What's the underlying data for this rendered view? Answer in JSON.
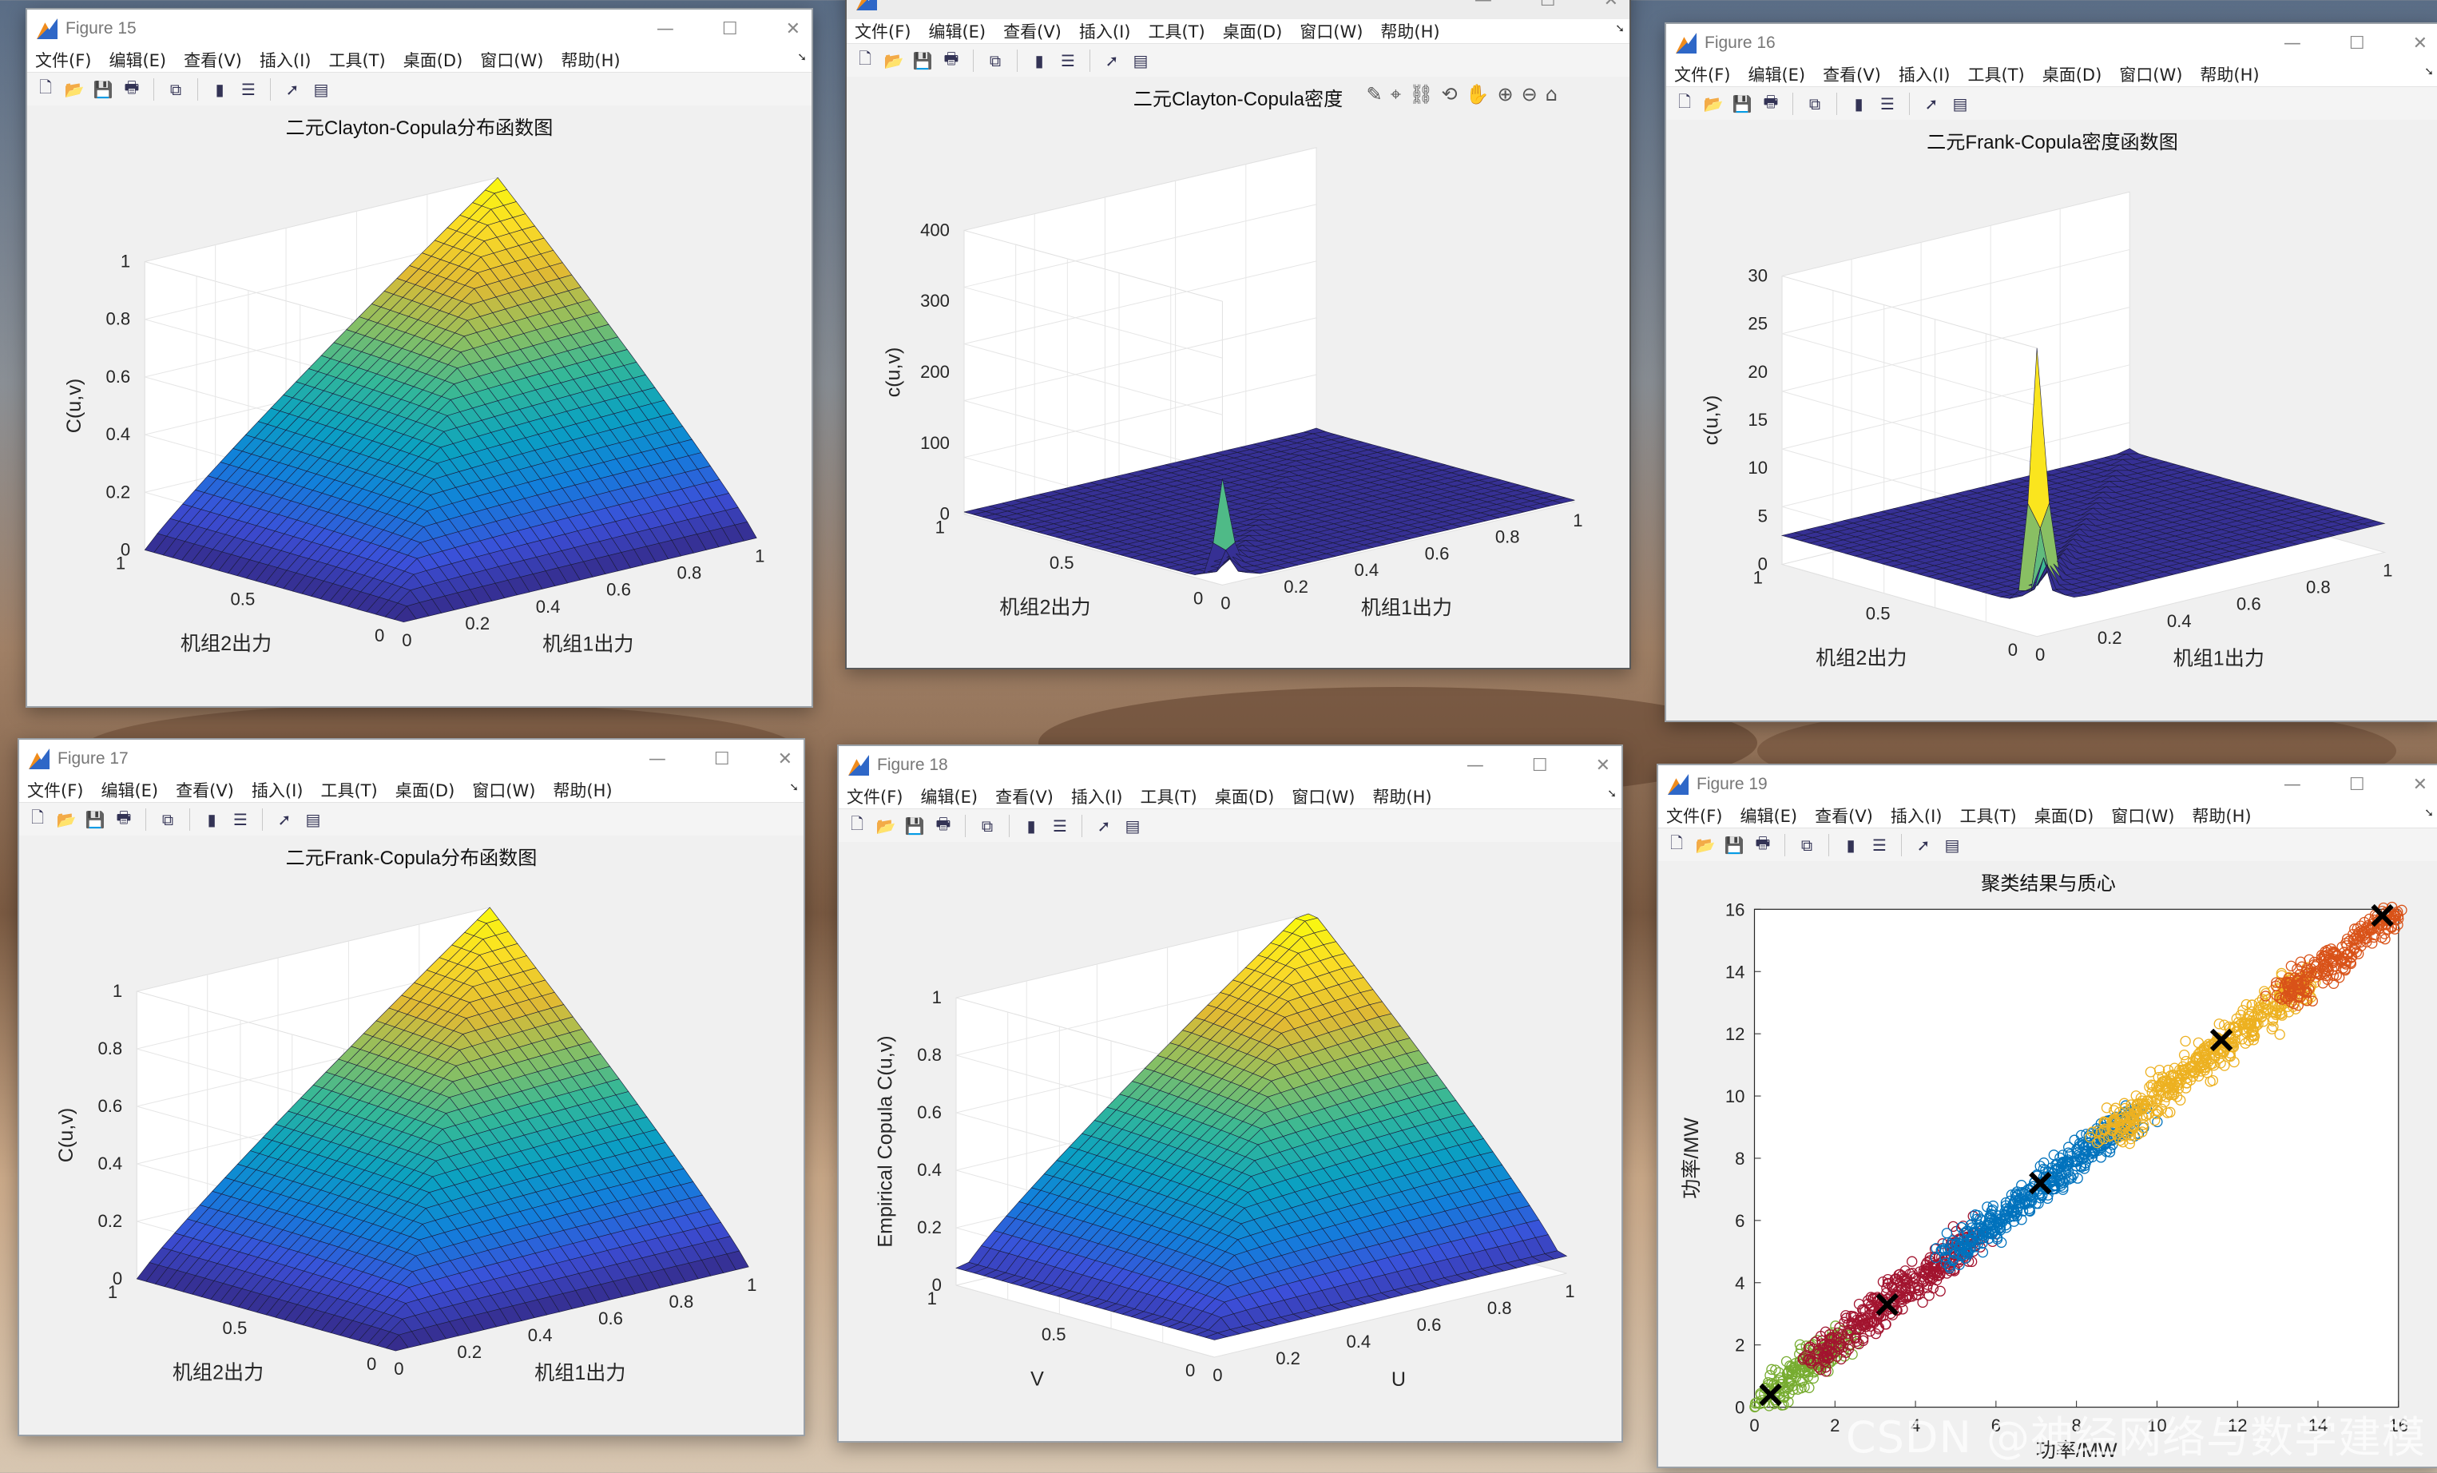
{
  "menus": [
    "文件(F)",
    "编辑(E)",
    "查看(V)",
    "插入(I)",
    "工具(T)",
    "桌面(D)",
    "窗口(W)",
    "帮助(H)"
  ],
  "toolbar_icons": [
    "new-figure-icon",
    "open-file-icon",
    "save-icon",
    "print-icon",
    "link-icon",
    "colorbar-icon",
    "legend-icon",
    "pointer-icon",
    "property-inspector-icon"
  ],
  "axes_toolbar_icons": [
    "brush-icon",
    "data-tip-icon",
    "link-axes-icon",
    "rotate-3d-icon",
    "pan-icon",
    "zoom-in-icon",
    "zoom-out-icon",
    "home-icon"
  ],
  "window_controls": {
    "minimize": "—",
    "maximize": "☐",
    "close": "✕"
  },
  "windows": [
    {
      "id": "f15",
      "title": "Figure 15",
      "active": false,
      "plot": {
        "type": "surface",
        "surface": "cdf",
        "title": "二元Clayton-Copula分布函数图",
        "zlabel": "C(u,v)",
        "xlabel": "机组1出力",
        "ylabel": "机组2出力",
        "zticks": [
          "0",
          "0.2",
          "0.4",
          "0.6",
          "0.8",
          "1"
        ],
        "xticks": [
          "0",
          "0.2",
          "0.4",
          "0.6",
          "0.8",
          "1"
        ],
        "yticks": [
          "0",
          "0.5",
          "1"
        ]
      }
    },
    {
      "id": "fclay",
      "title": "",
      "active": true,
      "plot": {
        "type": "surface",
        "surface": "density",
        "title": "二元Clayton-Copula密度",
        "zlabel": "c(u,v)",
        "xlabel": "机组1出力",
        "ylabel": "机组2出力",
        "zticks": [
          "0",
          "100",
          "200",
          "300",
          "400"
        ],
        "xticks": [
          "0",
          "0.2",
          "0.4",
          "0.6",
          "0.8",
          "1"
        ],
        "yticks": [
          "0",
          "0.5",
          "1"
        ]
      }
    },
    {
      "id": "f16",
      "title": "Figure 16",
      "active": false,
      "plot": {
        "type": "surface",
        "surface": "density",
        "title": "二元Frank-Copula密度函数图",
        "zlabel": "c(u,v)",
        "xlabel": "机组1出力",
        "ylabel": "机组2出力",
        "zticks": [
          "0",
          "5",
          "10",
          "15",
          "20",
          "25",
          "30"
        ],
        "xticks": [
          "0",
          "0.2",
          "0.4",
          "0.6",
          "0.8",
          "1"
        ],
        "yticks": [
          "0",
          "0.5",
          "1"
        ]
      }
    },
    {
      "id": "f17",
      "title": "Figure 17",
      "active": false,
      "plot": {
        "type": "surface",
        "surface": "cdf",
        "title": "二元Frank-Copula分布函数图",
        "zlabel": "C(u,v)",
        "xlabel": "机组1出力",
        "ylabel": "机组2出力",
        "zticks": [
          "0",
          "0.2",
          "0.4",
          "0.6",
          "0.8",
          "1"
        ],
        "xticks": [
          "0",
          "0.2",
          "0.4",
          "0.6",
          "0.8",
          "1"
        ],
        "yticks": [
          "0",
          "0.5",
          "1"
        ]
      }
    },
    {
      "id": "f18",
      "title": "Figure 18",
      "active": false,
      "plot": {
        "type": "surface",
        "surface": "empirical",
        "title": "",
        "zlabel": "Empirical Copula C(u,v)",
        "xlabel": "U",
        "ylabel": "V",
        "zticks": [
          "0",
          "0.2",
          "0.4",
          "0.6",
          "0.8",
          "1"
        ],
        "xticks": [
          "0",
          "0.2",
          "0.4",
          "0.6",
          "0.8",
          "1"
        ],
        "yticks": [
          "0",
          "0.5",
          "1"
        ]
      }
    },
    {
      "id": "f19",
      "title": "Figure 19",
      "active": false,
      "plot": {
        "type": "scatter",
        "title": "聚类结果与质心",
        "xlabel": "功率/MW",
        "ylabel": "功率/MW",
        "xticks": [
          "0",
          "2",
          "4",
          "6",
          "8",
          "10",
          "12",
          "14",
          "16"
        ],
        "yticks": [
          "0",
          "2",
          "4",
          "6",
          "8",
          "10",
          "12",
          "14",
          "16"
        ]
      }
    }
  ],
  "chart_data": [
    {
      "type": "surface",
      "title": "二元Clayton-Copula分布函数图",
      "zlabel": "C(u,v)",
      "xlabel": "机组1出力",
      "ylabel": "机组2出力",
      "xlim": [
        0,
        1
      ],
      "ylim": [
        0,
        1
      ],
      "zlim": [
        0,
        1
      ],
      "description_values": {
        "C(0,0)": 0,
        "C(1,1)": 1
      }
    },
    {
      "type": "surface",
      "title": "二元Clayton-Copula密度",
      "zlabel": "c(u,v)",
      "xlabel": "机组1出力",
      "ylabel": "机组2出力",
      "xlim": [
        0,
        1
      ],
      "ylim": [
        0,
        1
      ],
      "zlim": [
        0,
        400
      ],
      "peak": {
        "u": 0.02,
        "v": 0.02,
        "c": 150
      }
    },
    {
      "type": "surface",
      "title": "二元Frank-Copula密度函数图",
      "zlabel": "c(u,v)",
      "xlabel": "机组1出力",
      "ylabel": "机组2出力",
      "xlim": [
        0,
        1
      ],
      "ylim": [
        0,
        1
      ],
      "zlim": [
        0,
        30
      ],
      "peak": {
        "u": 0.02,
        "v": 0.02,
        "c": 30
      }
    },
    {
      "type": "surface",
      "title": "二元Frank-Copula分布函数图",
      "zlabel": "C(u,v)",
      "xlabel": "机组1出力",
      "ylabel": "机组2出力",
      "xlim": [
        0,
        1
      ],
      "ylim": [
        0,
        1
      ],
      "zlim": [
        0,
        1
      ]
    },
    {
      "type": "surface",
      "title": "",
      "zlabel": "Empirical Copula C(u,v)",
      "xlabel": "U",
      "ylabel": "V",
      "xlim": [
        0,
        1
      ],
      "ylim": [
        0,
        1
      ],
      "zlim": [
        0,
        1
      ]
    },
    {
      "type": "scatter",
      "title": "聚类结果与质心",
      "xlabel": "功率/MW",
      "ylabel": "功率/MW",
      "xlim": [
        0,
        16
      ],
      "ylim": [
        0,
        16
      ],
      "series": [
        {
          "color": "#77ac30",
          "x_range": [
            0,
            2.2
          ],
          "centroid": [
            0.4,
            0.4
          ]
        },
        {
          "color": "#a2142f",
          "x_range": [
            1.5,
            5.5
          ],
          "centroid": [
            3.3,
            3.3
          ]
        },
        {
          "color": "#0072bd",
          "x_range": [
            4.8,
            9.5
          ],
          "centroid": [
            7.1,
            7.2
          ]
        },
        {
          "color": "#edb120",
          "x_range": [
            8.7,
            13.8
          ],
          "centroid": [
            11.6,
            11.8
          ]
        },
        {
          "color": "#d95319",
          "x_range": [
            13.2,
            16
          ],
          "centroid": [
            15.6,
            15.8
          ]
        }
      ]
    }
  ],
  "watermark": "CSDN @神经网络与数学建模"
}
